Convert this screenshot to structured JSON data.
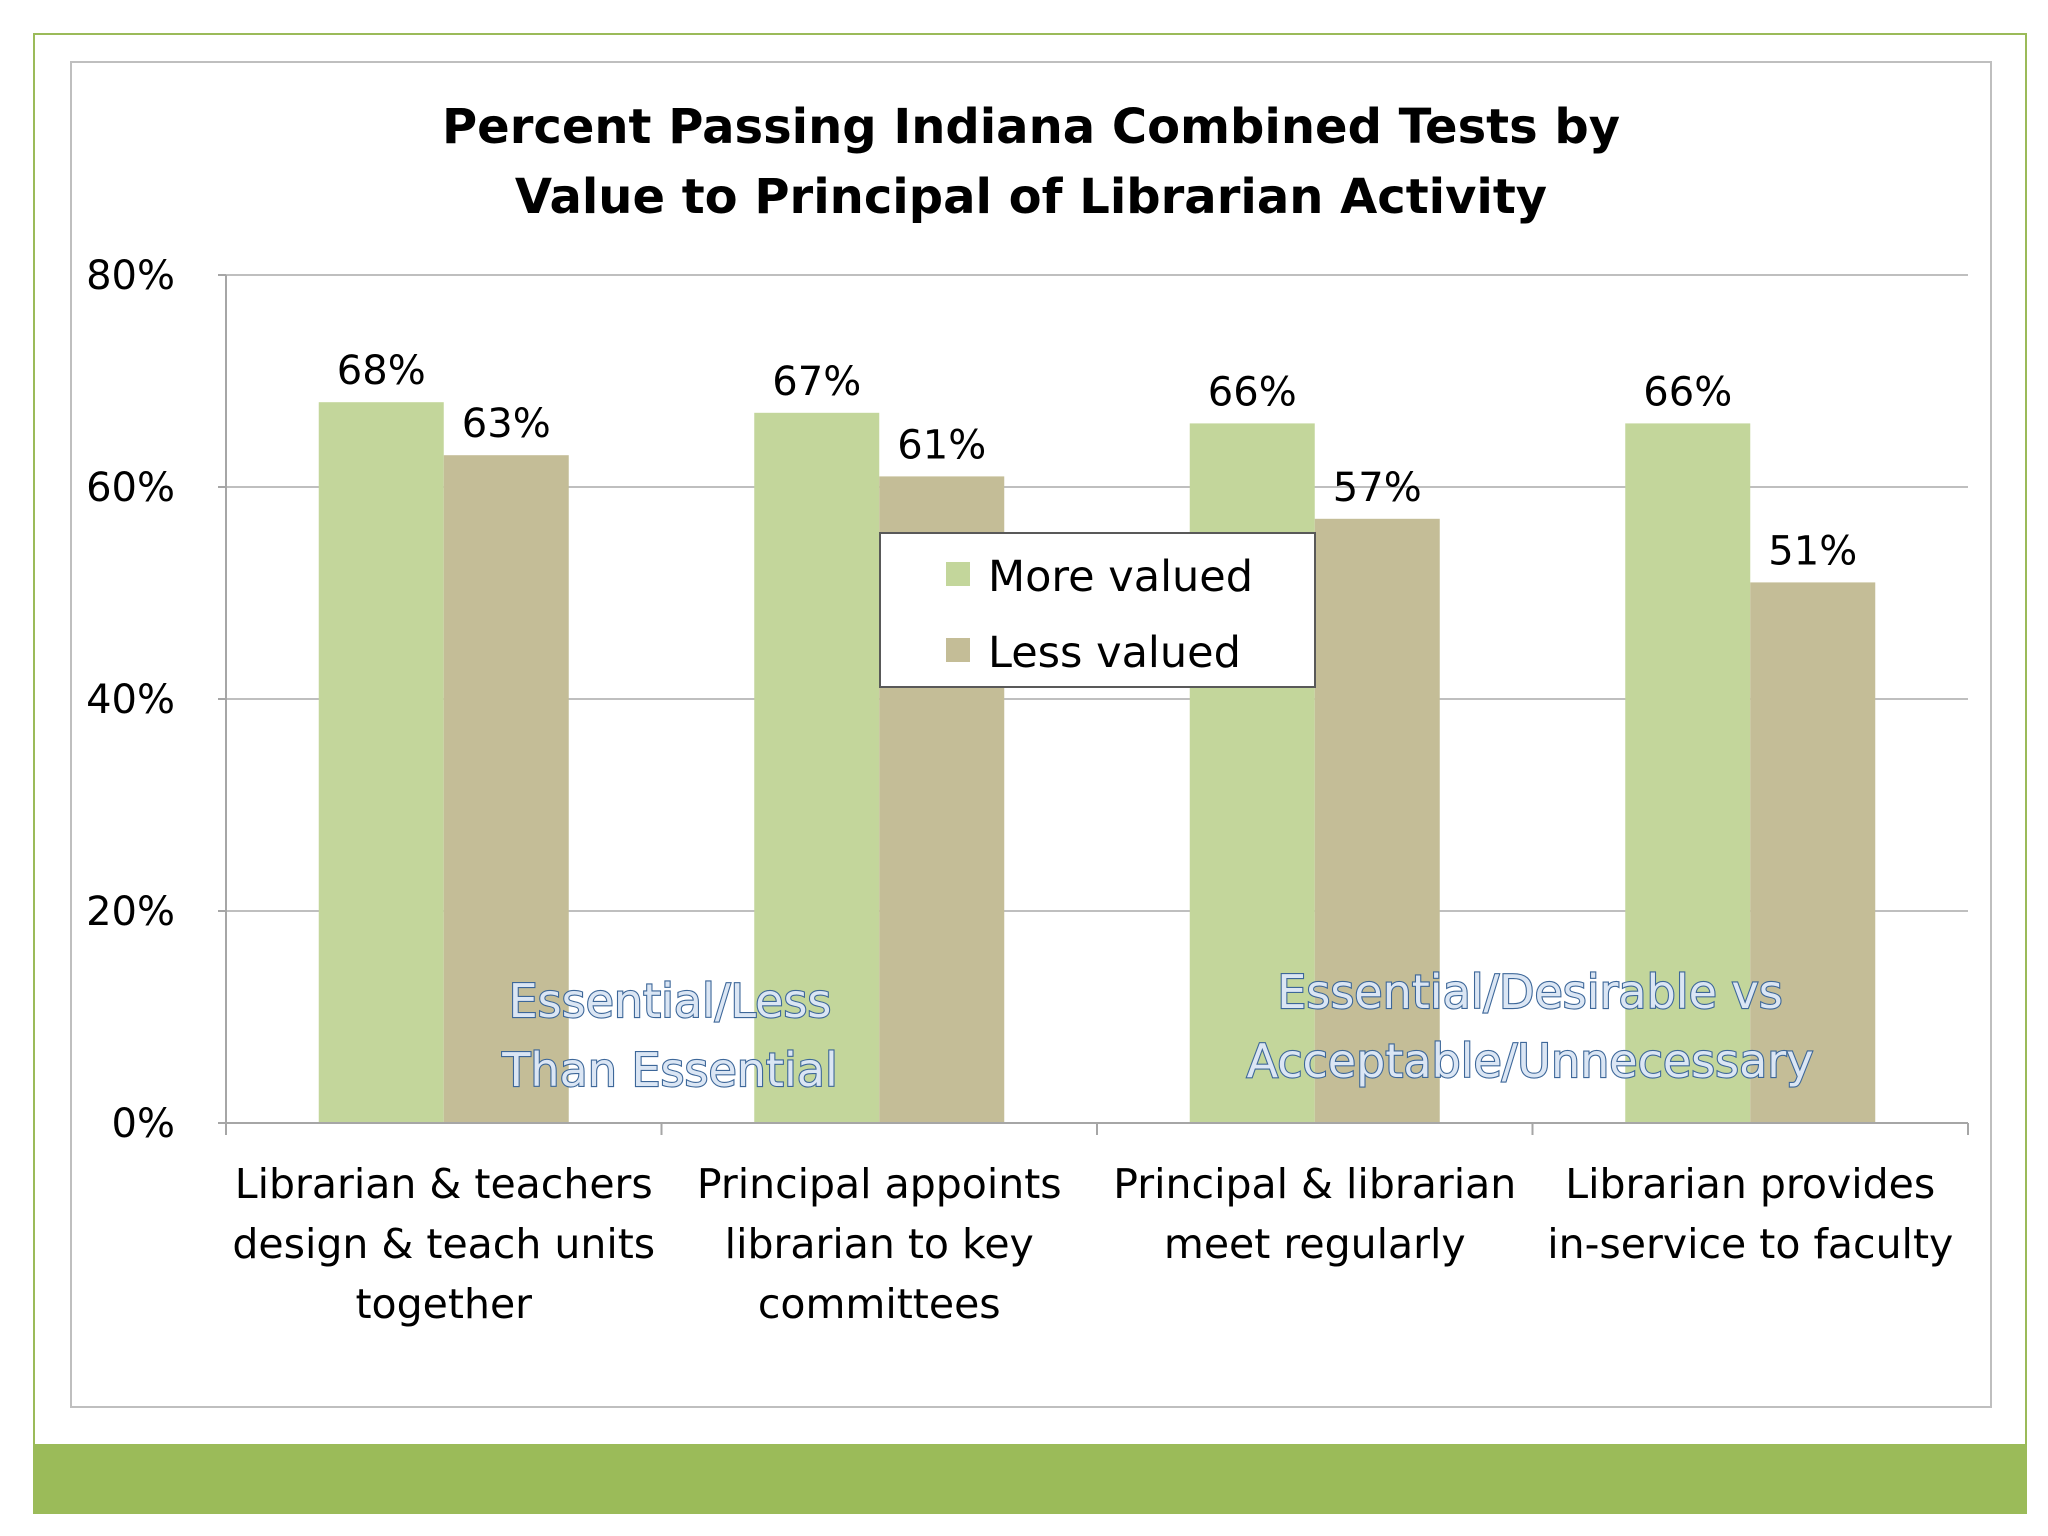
{
  "chart_data": {
    "type": "bar",
    "title": [
      "Percent Passing Indiana Combined Tests by",
      "Value to Principal of Librarian Activity"
    ],
    "xlabel": "",
    "ylabel": "",
    "ylim": [
      0,
      80
    ],
    "yticks": [
      "0%",
      "20%",
      "40%",
      "60%",
      "80%"
    ],
    "grid": true,
    "legend_position": "center",
    "categories": [
      [
        "Librarian & teachers",
        "design & teach units",
        "together"
      ],
      [
        "Principal appoints",
        "librarian to key",
        "committees"
      ],
      [
        "Principal & librarian",
        "meet regularly"
      ],
      [
        "Librarian provides",
        "in-service to faculty"
      ]
    ],
    "series": [
      {
        "name": "More valued",
        "values": [
          68,
          67,
          66,
          66
        ],
        "labels": [
          "68%",
          "67%",
          "66%",
          "66%"
        ],
        "color": "#c3d69b"
      },
      {
        "name": "Less valued",
        "values": [
          63,
          61,
          57,
          51
        ],
        "labels": [
          "63%",
          "61%",
          "57%",
          "51%"
        ],
        "color": "#c4bd97"
      }
    ],
    "annotations": [
      {
        "lines": [
          "Essential/Less",
          "Than Essential"
        ]
      },
      {
        "lines": [
          "Essential/Desirable vs",
          "Acceptable/Unnecessary"
        ]
      }
    ]
  },
  "colors": {
    "frame": "#9bbb59",
    "footer": "#9bbb59",
    "gridline": "#bfbfbf",
    "axis": "#a6a6a6"
  }
}
